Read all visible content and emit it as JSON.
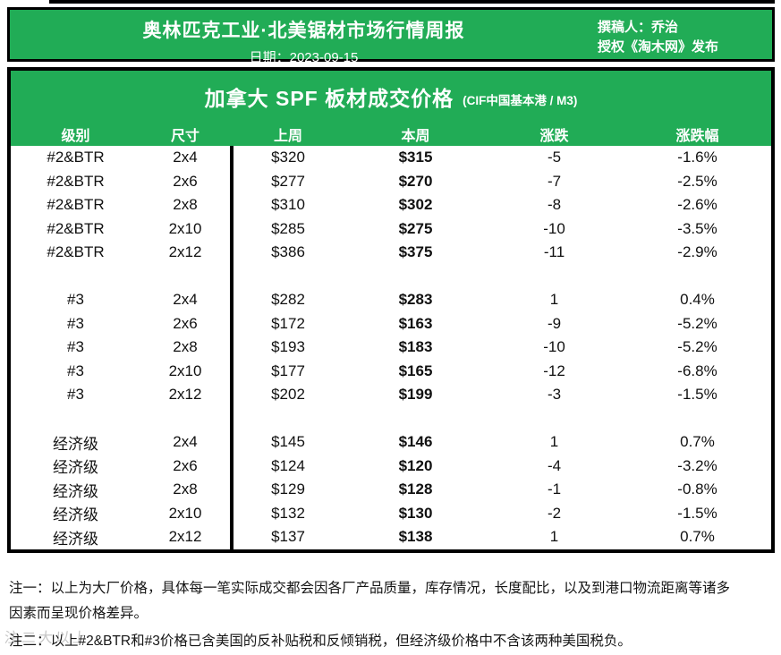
{
  "header": {
    "title": "奥林匹克工业·北美锯材市场行情周报",
    "date": "日期：2023-09-15",
    "author": "撰稿人：乔治",
    "license": "授权《淘木网》发布"
  },
  "table": {
    "title": "加拿大 SPF 板材成交价格",
    "subtitle": "(CIF中国基本港 / M3)",
    "columns": [
      "级别",
      "尺寸",
      "上周",
      "本周",
      "涨跌",
      "涨跌幅"
    ],
    "groups": [
      {
        "grade": "#2&BTR",
        "rows": [
          {
            "size": "2x4",
            "last_week": "$320",
            "this_week": "$315",
            "change": "-5",
            "change_pct": "-1.6%"
          },
          {
            "size": "2x6",
            "last_week": "$277",
            "this_week": "$270",
            "change": "-7",
            "change_pct": "-2.5%"
          },
          {
            "size": "2x8",
            "last_week": "$310",
            "this_week": "$302",
            "change": "-8",
            "change_pct": "-2.6%"
          },
          {
            "size": "2x10",
            "last_week": "$285",
            "this_week": "$275",
            "change": "-10",
            "change_pct": "-3.5%"
          },
          {
            "size": "2x12",
            "last_week": "$386",
            "this_week": "$375",
            "change": "-11",
            "change_pct": "-2.9%"
          }
        ]
      },
      {
        "grade": "#3",
        "rows": [
          {
            "size": "2x4",
            "last_week": "$282",
            "this_week": "$283",
            "change": "1",
            "change_pct": "0.4%"
          },
          {
            "size": "2x6",
            "last_week": "$172",
            "this_week": "$163",
            "change": "-9",
            "change_pct": "-5.2%"
          },
          {
            "size": "2x8",
            "last_week": "$193",
            "this_week": "$183",
            "change": "-10",
            "change_pct": "-5.2%"
          },
          {
            "size": "2x10",
            "last_week": "$177",
            "this_week": "$165",
            "change": "-12",
            "change_pct": "-6.8%"
          },
          {
            "size": "2x12",
            "last_week": "$202",
            "this_week": "$199",
            "change": "-3",
            "change_pct": "-1.5%"
          }
        ]
      },
      {
        "grade": "经济级",
        "rows": [
          {
            "size": "2x4",
            "last_week": "$145",
            "this_week": "$146",
            "change": "1",
            "change_pct": "0.7%"
          },
          {
            "size": "2x6",
            "last_week": "$124",
            "this_week": "$120",
            "change": "-4",
            "change_pct": "-3.2%"
          },
          {
            "size": "2x8",
            "last_week": "$129",
            "this_week": "$128",
            "change": "-1",
            "change_pct": "-0.8%"
          },
          {
            "size": "2x10",
            "last_week": "$132",
            "this_week": "$130",
            "change": "-2",
            "change_pct": "-1.5%"
          },
          {
            "size": "2x12",
            "last_week": "$137",
            "this_week": "$138",
            "change": "1",
            "change_pct": "0.7%"
          }
        ]
      }
    ]
  },
  "notes": {
    "note1_line1": "注一：以上为大厂价格，具体每一笔实际成交都会因各厂产品质量，库存情况，长度配比，以及到港口物流距离等诸多",
    "note1_line2": "因素而呈现价格差异。",
    "note2": "注二：以上#2&BTR和#3价格已含美国的反补贴税和反倾销税，但经济级价格中不含该两种美国税负。",
    "watermark_text": "注二大以上"
  },
  "colors": {
    "brand_green": "#21ac56",
    "border_black": "#000000",
    "text": "#111111",
    "white": "#ffffff",
    "watermark_gray": "#9a9a9a"
  },
  "chart_data": {
    "type": "table",
    "title": "加拿大 SPF 板材成交价格 (CIF中国基本港 / M3)",
    "columns": [
      "级别",
      "尺寸",
      "上周",
      "本周",
      "涨跌",
      "涨跌幅"
    ],
    "rows": [
      [
        "#2&BTR",
        "2x4",
        320,
        315,
        -5,
        "-1.6%"
      ],
      [
        "#2&BTR",
        "2x6",
        277,
        270,
        -7,
        "-2.5%"
      ],
      [
        "#2&BTR",
        "2x8",
        310,
        302,
        -8,
        "-2.6%"
      ],
      [
        "#2&BTR",
        "2x10",
        285,
        275,
        -10,
        "-3.5%"
      ],
      [
        "#2&BTR",
        "2x12",
        386,
        375,
        -11,
        "-2.9%"
      ],
      [
        "#3",
        "2x4",
        282,
        283,
        1,
        "0.4%"
      ],
      [
        "#3",
        "2x6",
        172,
        163,
        -9,
        "-5.2%"
      ],
      [
        "#3",
        "2x8",
        193,
        183,
        -10,
        "-5.2%"
      ],
      [
        "#3",
        "2x10",
        177,
        165,
        -12,
        "-6.8%"
      ],
      [
        "#3",
        "2x12",
        202,
        199,
        -3,
        "-1.5%"
      ],
      [
        "经济级",
        "2x4",
        145,
        146,
        1,
        "0.7%"
      ],
      [
        "经济级",
        "2x6",
        124,
        120,
        -4,
        "-3.2%"
      ],
      [
        "经济级",
        "2x8",
        129,
        128,
        -1,
        "-0.8%"
      ],
      [
        "经济级",
        "2x10",
        132,
        130,
        -2,
        "-1.5%"
      ],
      [
        "经济级",
        "2x12",
        137,
        138,
        1,
        "0.7%"
      ]
    ]
  }
}
